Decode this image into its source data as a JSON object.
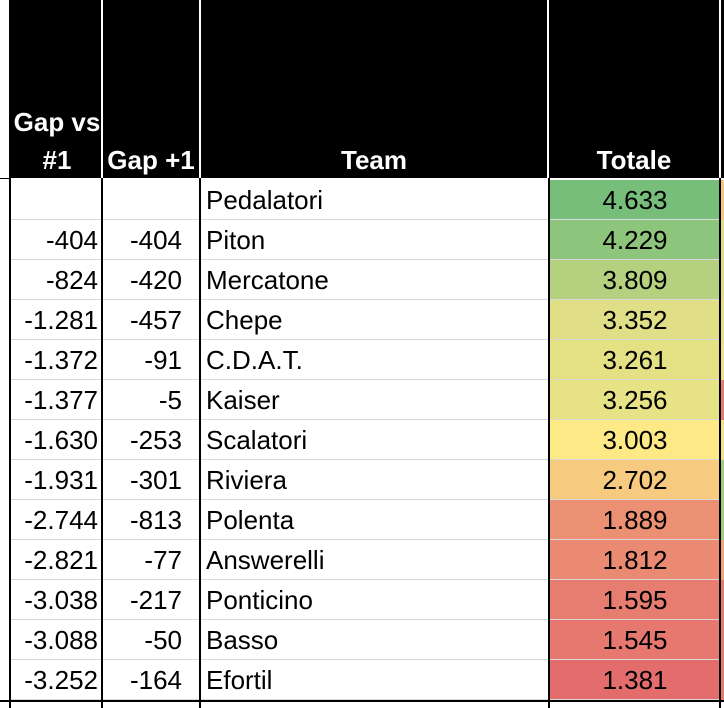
{
  "headers": {
    "gap_vs_1_line1": "Gap vs",
    "gap_vs_1_line2": "#1",
    "gap_plus_1": "Gap +1",
    "team": "Team",
    "totale": "Totale"
  },
  "rows": [
    {
      "gap_vs_1": "",
      "gap_plus_1": "",
      "team": "Pedalatori",
      "totale": "4.633",
      "color": "#78be7b"
    },
    {
      "gap_vs_1": "-404",
      "gap_plus_1": "-404",
      "team": "Piton",
      "totale": "4.229",
      "color": "#8ec57d"
    },
    {
      "gap_vs_1": "-824",
      "gap_plus_1": "-420",
      "team": "Mercatone",
      "totale": "3.809",
      "color": "#b5d17f"
    },
    {
      "gap_vs_1": "-1.281",
      "gap_plus_1": "-457",
      "team": "Chepe",
      "totale": "3.352",
      "color": "#e0df87"
    },
    {
      "gap_vs_1": "-1.372",
      "gap_plus_1": "-91",
      "team": "C.D.A.T.",
      "totale": "3.261",
      "color": "#e4e184"
    },
    {
      "gap_vs_1": "-1.377",
      "gap_plus_1": "-5",
      "team": "Kaiser",
      "totale": "3.256",
      "color": "#e6e285"
    },
    {
      "gap_vs_1": "-1.630",
      "gap_plus_1": "-253",
      "team": "Scalatori",
      "totale": "3.003",
      "color": "#fdea86"
    },
    {
      "gap_vs_1": "-1.931",
      "gap_plus_1": "-301",
      "team": "Riviera",
      "totale": "2.702",
      "color": "#f7cb7f"
    },
    {
      "gap_vs_1": "-2.744",
      "gap_plus_1": "-813",
      "team": "Polenta",
      "totale": "1.889",
      "color": "#ec9073"
    },
    {
      "gap_vs_1": "-2.821",
      "gap_plus_1": "-77",
      "team": "Answerelli",
      "totale": "1.812",
      "color": "#ea8a72"
    },
    {
      "gap_vs_1": "-3.038",
      "gap_plus_1": "-217",
      "team": "Ponticino",
      "totale": "1.595",
      "color": "#e77c70"
    },
    {
      "gap_vs_1": "-3.088",
      "gap_plus_1": "-50",
      "team": "Basso",
      "totale": "1.545",
      "color": "#e6786f"
    },
    {
      "gap_vs_1": "-3.252",
      "gap_plus_1": "-164",
      "team": "Efortil",
      "totale": "1.381",
      "color": "#e36c6c"
    }
  ],
  "next_column_colors": [
    "#f3c77b",
    "#dedc84",
    "#dedc84",
    "#e4e184",
    "#eadf84",
    "#e77a6f",
    "#f0e284",
    "#9fcc7f",
    "#9fcc7f",
    "#f0a377",
    "#e77a6f",
    "#e77a6f",
    "#e77a6f"
  ]
}
